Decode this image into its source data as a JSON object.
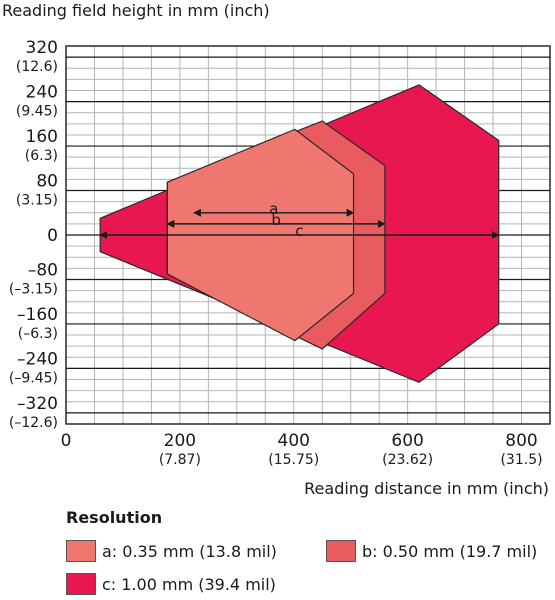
{
  "chart_data": {
    "type": "area",
    "xlabel": "Reading distance in mm (inch)",
    "ylabel": "Reading field height in mm (inch)",
    "xlim": [
      0,
      850
    ],
    "ylim": [
      -340,
      340
    ],
    "grid": true,
    "x_ticks": [
      {
        "value": 0,
        "label": "0",
        "sub": ""
      },
      {
        "value": 200,
        "label": "200",
        "sub": "(7.87)"
      },
      {
        "value": 400,
        "label": "400",
        "sub": "(15.75)"
      },
      {
        "value": 600,
        "label": "600",
        "sub": "(23.62)"
      },
      {
        "value": 800,
        "label": "800",
        "sub": "(31.5)"
      }
    ],
    "y_ticks": [
      {
        "value": 320,
        "label": "320",
        "sub": "(12.6)"
      },
      {
        "value": 240,
        "label": "240",
        "sub": "(9.45)"
      },
      {
        "value": 160,
        "label": "160",
        "sub": "(6.3)"
      },
      {
        "value": 80,
        "label": "80",
        "sub": "(3.15)"
      },
      {
        "value": 0,
        "label": "0",
        "sub": ""
      },
      {
        "value": -80,
        "label": "–80",
        "sub": "(–3.15)"
      },
      {
        "value": -160,
        "label": "–160",
        "sub": "(–6.3)"
      },
      {
        "value": -240,
        "label": "–240",
        "sub": "(–9.45)"
      },
      {
        "value": -320,
        "label": "–320",
        "sub": "(–12.6)"
      }
    ],
    "series": [
      {
        "name": "c: 1.00 mm (39.4 mil)",
        "key": "c",
        "color": "#e8174f",
        "polygon": [
          [
            60,
            30
          ],
          [
            620,
            270
          ],
          [
            760,
            170
          ],
          [
            760,
            -160
          ],
          [
            620,
            -265
          ],
          [
            60,
            -30
          ]
        ]
      },
      {
        "name": "b: 0.50 mm (19.7 mil)",
        "key": "b",
        "color": "#ea5b60",
        "polygon": [
          [
            178,
            95
          ],
          [
            450,
            205
          ],
          [
            560,
            125
          ],
          [
            560,
            -105
          ],
          [
            450,
            -205
          ],
          [
            178,
            -70
          ]
        ]
      },
      {
        "name": "a: 0.35 mm (13.8 mil)",
        "key": "a",
        "color": "#ef7770",
        "polygon": [
          [
            178,
            95
          ],
          [
            402,
            190
          ],
          [
            505,
            110
          ],
          [
            505,
            -105
          ],
          [
            402,
            -190
          ],
          [
            178,
            -70
          ]
        ]
      }
    ],
    "dimensions": [
      {
        "label": "a",
        "x_start": 225,
        "x_end": 505,
        "y": 40
      },
      {
        "label": "b",
        "x_start": 178,
        "x_end": 560,
        "y": 20
      },
      {
        "label": "c",
        "x_start": 60,
        "x_end": 760,
        "y": 0
      }
    ]
  },
  "legend": {
    "title": "Resolution",
    "items": [
      {
        "label": "a: 0.35 mm (13.8 mil)",
        "color": "#ef7770"
      },
      {
        "label": "b: 0.50 mm (19.7 mil)",
        "color": "#ea5b60"
      },
      {
        "label": "c: 1.00 mm (39.4 mil)",
        "color": "#e8174f"
      }
    ]
  }
}
